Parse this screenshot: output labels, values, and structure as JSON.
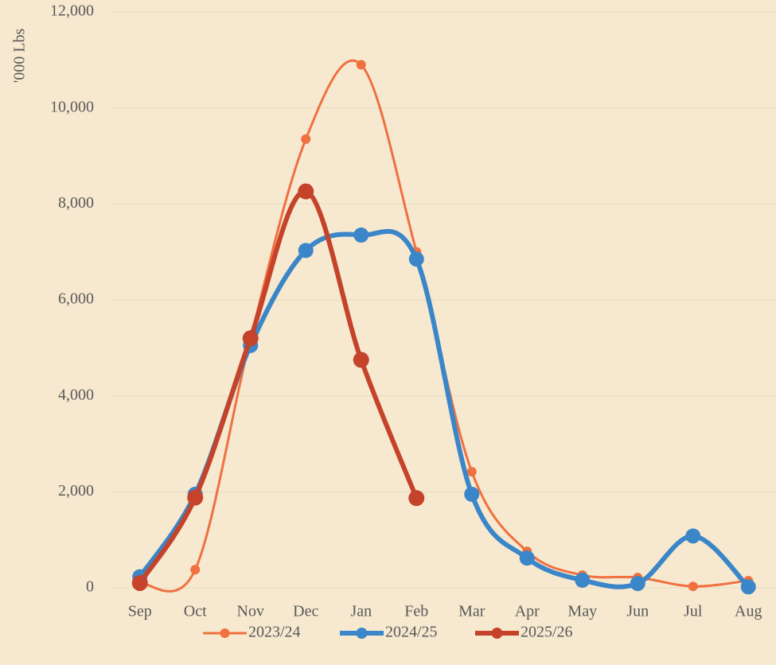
{
  "chart_data": {
    "type": "line",
    "y_label": "'000 Lbs",
    "categories": [
      "Sep",
      "Oct",
      "Nov",
      "Dec",
      "Jan",
      "Feb",
      "Mar",
      "Apr",
      "May",
      "Jun",
      "Jul",
      "Aug"
    ],
    "series": [
      {
        "name": "2023/24",
        "color": "#f07040",
        "values": [
          100,
          380,
          5200,
          9350,
          10900,
          7000,
          2420,
          760,
          265,
          215,
          30,
          150
        ]
      },
      {
        "name": "2024/25",
        "color": "#3a86c8",
        "values": [
          230,
          1950,
          5050,
          7030,
          7350,
          6850,
          1950,
          620,
          160,
          90,
          1080,
          20
        ]
      },
      {
        "name": "2025/26",
        "color": "#c4432a",
        "values": [
          100,
          1880,
          5200,
          8260,
          4750,
          1870,
          null,
          null,
          null,
          null,
          null,
          null
        ]
      }
    ],
    "ylim": [
      0,
      12000
    ],
    "yticks": [
      0,
      {
        "value": 2000,
        "label": "2,000"
      },
      {
        "value": 4000,
        "label": "4,000"
      },
      {
        "value": 6000,
        "label": "6,000"
      },
      {
        "value": 8000,
        "label": "8,000"
      },
      {
        "value": 10000,
        "label": "10,000"
      },
      {
        "value": 12000,
        "label": "12,000"
      }
    ],
    "grid": true,
    "legend": "bottom"
  }
}
